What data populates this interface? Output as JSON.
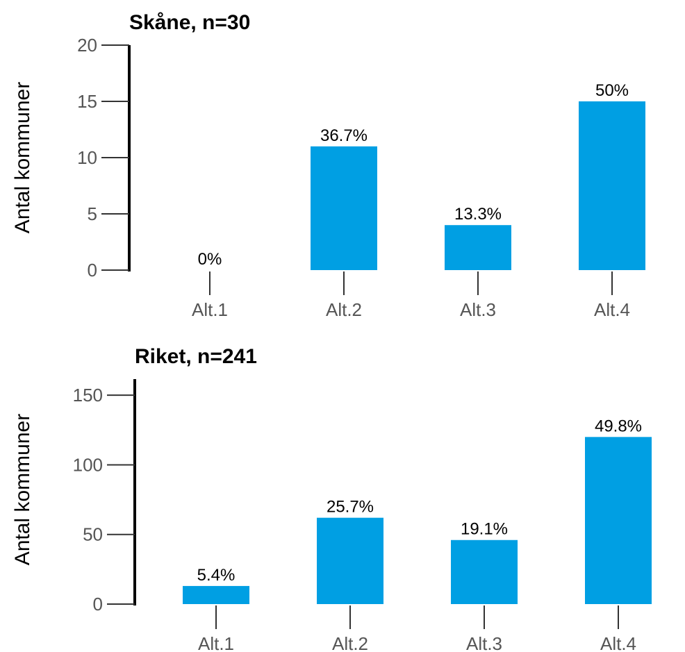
{
  "chart_data": [
    {
      "type": "bar",
      "title": "Skåne, n=30",
      "ylabel": "Antal kommuner",
      "categories": [
        "Alt.1",
        "Alt.2",
        "Alt.3",
        "Alt.4"
      ],
      "values": [
        0,
        11,
        4,
        15
      ],
      "labels": [
        "0%",
        "36.7%",
        "13.3%",
        "50%"
      ],
      "ylim": [
        0,
        20
      ],
      "yticks": [
        0,
        5,
        10,
        15,
        20
      ],
      "bar_color": "#009fe3",
      "grid": false,
      "legend": "none"
    },
    {
      "type": "bar",
      "title": "Riket, n=241",
      "ylabel": "Antal kommuner",
      "categories": [
        "Alt.1",
        "Alt.2",
        "Alt.3",
        "Alt.4"
      ],
      "values": [
        13,
        62,
        46,
        120
      ],
      "labels": [
        "5.4%",
        "25.7%",
        "19.1%",
        "49.8%"
      ],
      "ylim": [
        0,
        180
      ],
      "yticks": [
        0,
        50,
        100,
        150
      ],
      "bar_color": "#009fe3",
      "grid": false,
      "legend": "none"
    }
  ]
}
